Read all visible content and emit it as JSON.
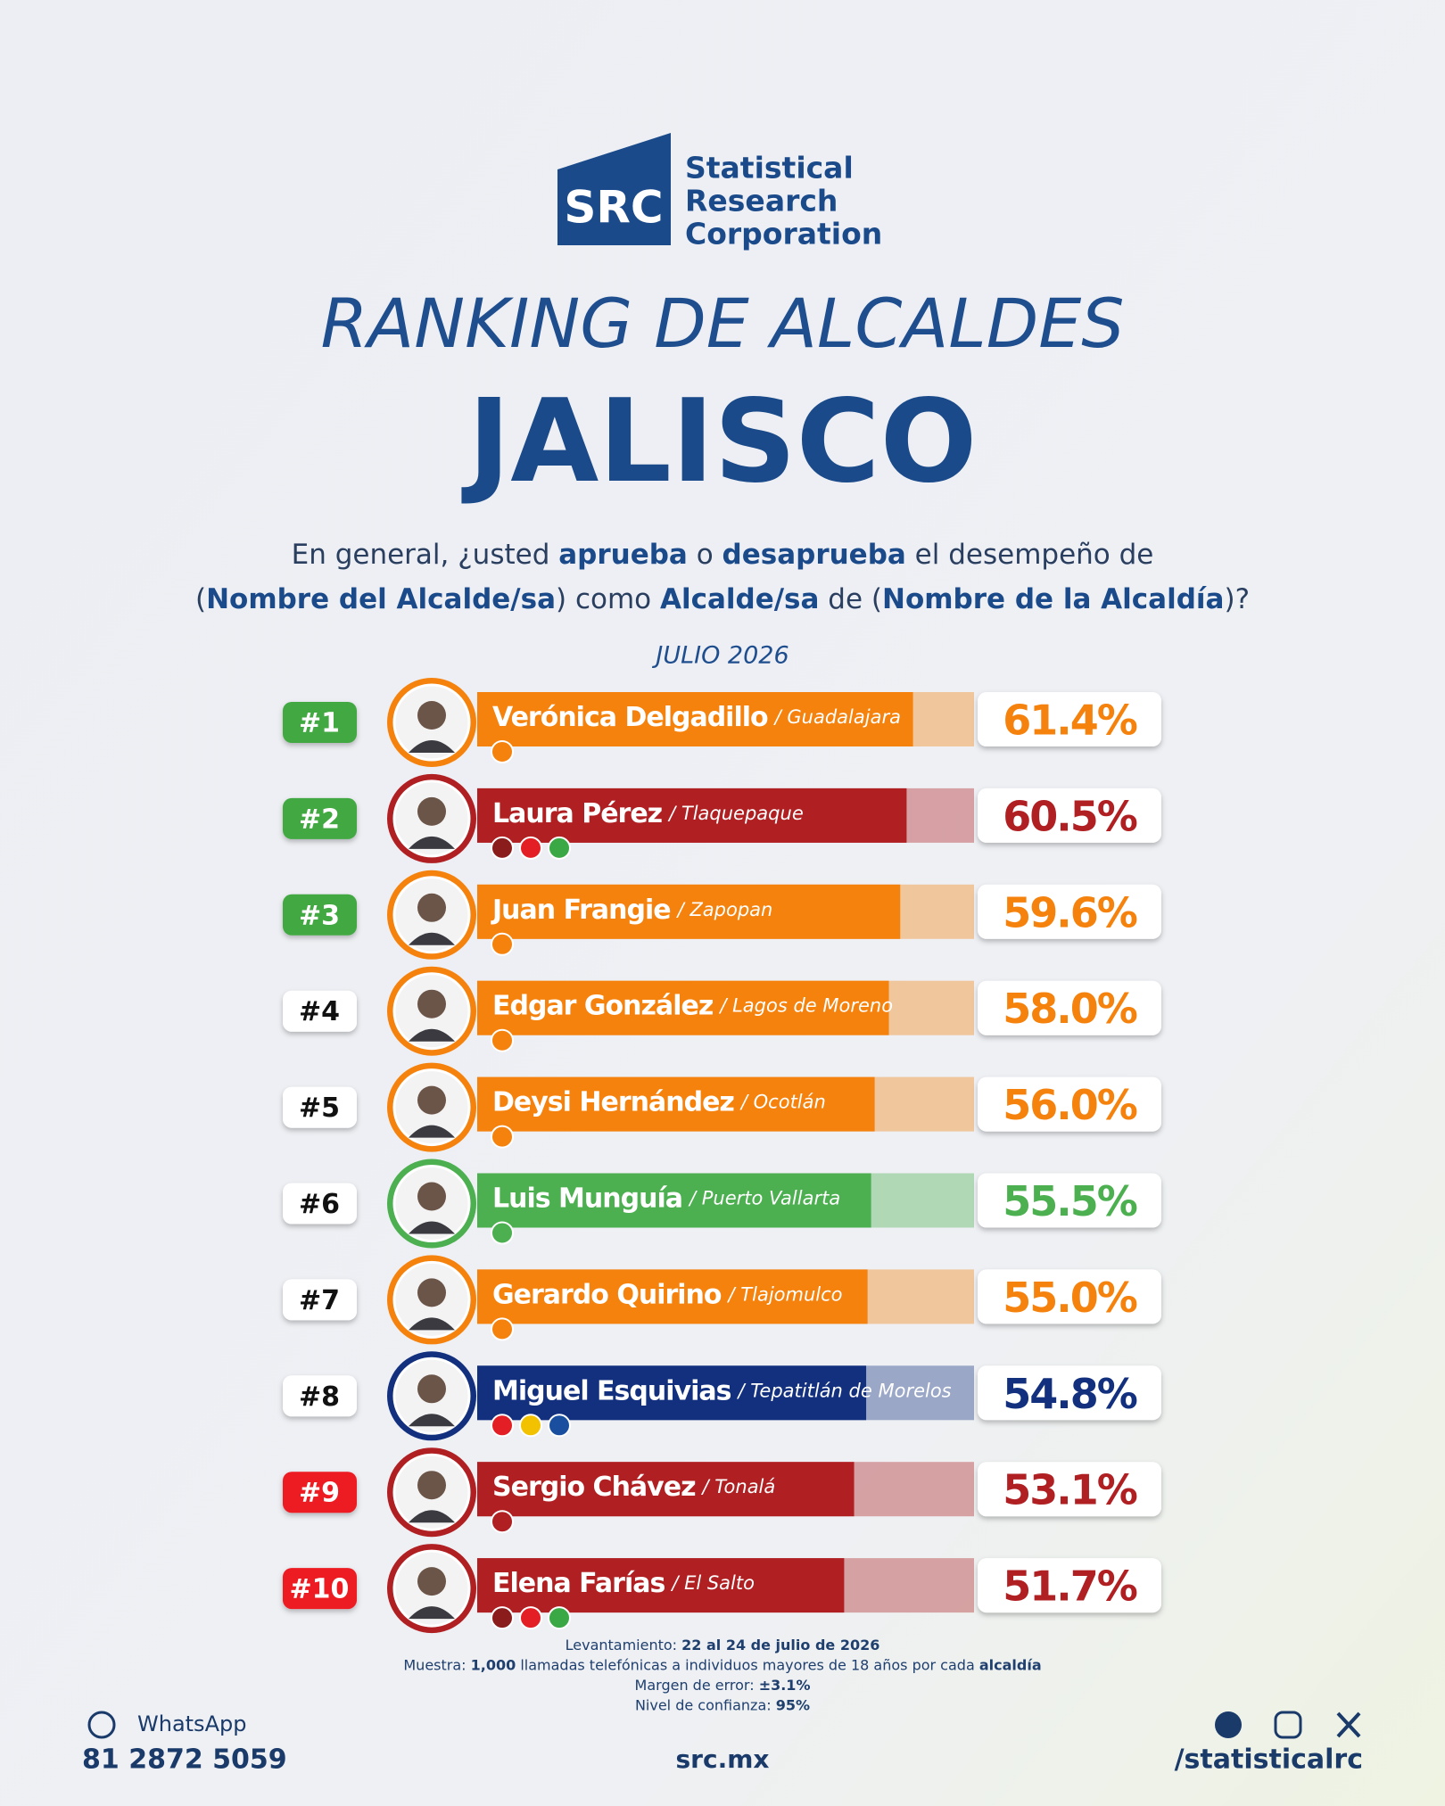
{
  "logo": {
    "mark": "SRC",
    "lines": [
      "Statistical",
      "Research",
      "Corporation"
    ]
  },
  "chart_data": {
    "type": "bar",
    "title": "RANKING DE ALCALDES",
    "subtitle": "JALISCO",
    "question_lines": [
      [
        "En general, ¿usted ",
        "aprueba",
        " o ",
        "desaprueba",
        " el desempeño de"
      ],
      [
        "(",
        "Nombre del Alcalde/sa",
        ") como ",
        "Alcalde/sa",
        " de (",
        "Nombre de la Alcaldía",
        ")?"
      ]
    ],
    "date": "JULIO 2026",
    "ranks": [
      "#1",
      "#2",
      "#3",
      "#4",
      "#5",
      "#6",
      "#7",
      "#8",
      "#9",
      "#10"
    ],
    "categories": [
      "Verónica Delgadillo",
      "Laura Pérez",
      "Juan Frangie",
      "Edgar González",
      "Deysi Hernández",
      "Luis Munguía",
      "Gerardo Quirino",
      "Miguel Esquivias",
      "Sergio Chávez",
      "Elena Farías"
    ],
    "cities": [
      "/ Guadalajara",
      "/ Tlaquepaque",
      "/ Zapopan",
      "/ Lagos de Moreno",
      "/ Ocotlán",
      "/ Puerto Vallarta",
      "/ Tlajomulco",
      "/ Tepatitlán de Morelos",
      "/ Tonalá",
      "/ El Salto"
    ],
    "values": [
      61.4,
      60.5,
      59.6,
      58.0,
      56.0,
      55.5,
      55.0,
      54.8,
      53.1,
      51.7
    ],
    "value_labels": [
      "61.4%",
      "60.5%",
      "59.6%",
      "58.0%",
      "56.0%",
      "55.5%",
      "55.0%",
      "54.8%",
      "53.1%",
      "51.7%"
    ],
    "colors": [
      "#f5820d",
      "#b01f22",
      "#f5820d",
      "#f5820d",
      "#f5820d",
      "#4caf50",
      "#f5820d",
      "#12307e",
      "#b01f22",
      "#b01f22"
    ],
    "rank_colors": [
      "#43a843",
      "#43a843",
      "#43a843",
      "#ffffff",
      "#ffffff",
      "#ffffff",
      "#ffffff",
      "#ffffff",
      "#ec1c24",
      "#ec1c24"
    ],
    "xlim": [
      0,
      70
    ]
  },
  "notes": [
    [
      "Levantamiento: ",
      "22 al 24 de julio de 2026"
    ],
    [
      "Muestra: ",
      "1,000",
      " llamadas telefónicas a individuos mayores de 18 años por cada ",
      "alcaldía"
    ],
    [
      "Margen de error: ",
      "±3.1%"
    ],
    [
      "Nivel de confianza: ",
      "95%"
    ]
  ],
  "footer": {
    "whatsapp": "WhatsApp",
    "phone": "81 2872 5059",
    "site": "src.mx",
    "handle": "/statisticalrc"
  }
}
